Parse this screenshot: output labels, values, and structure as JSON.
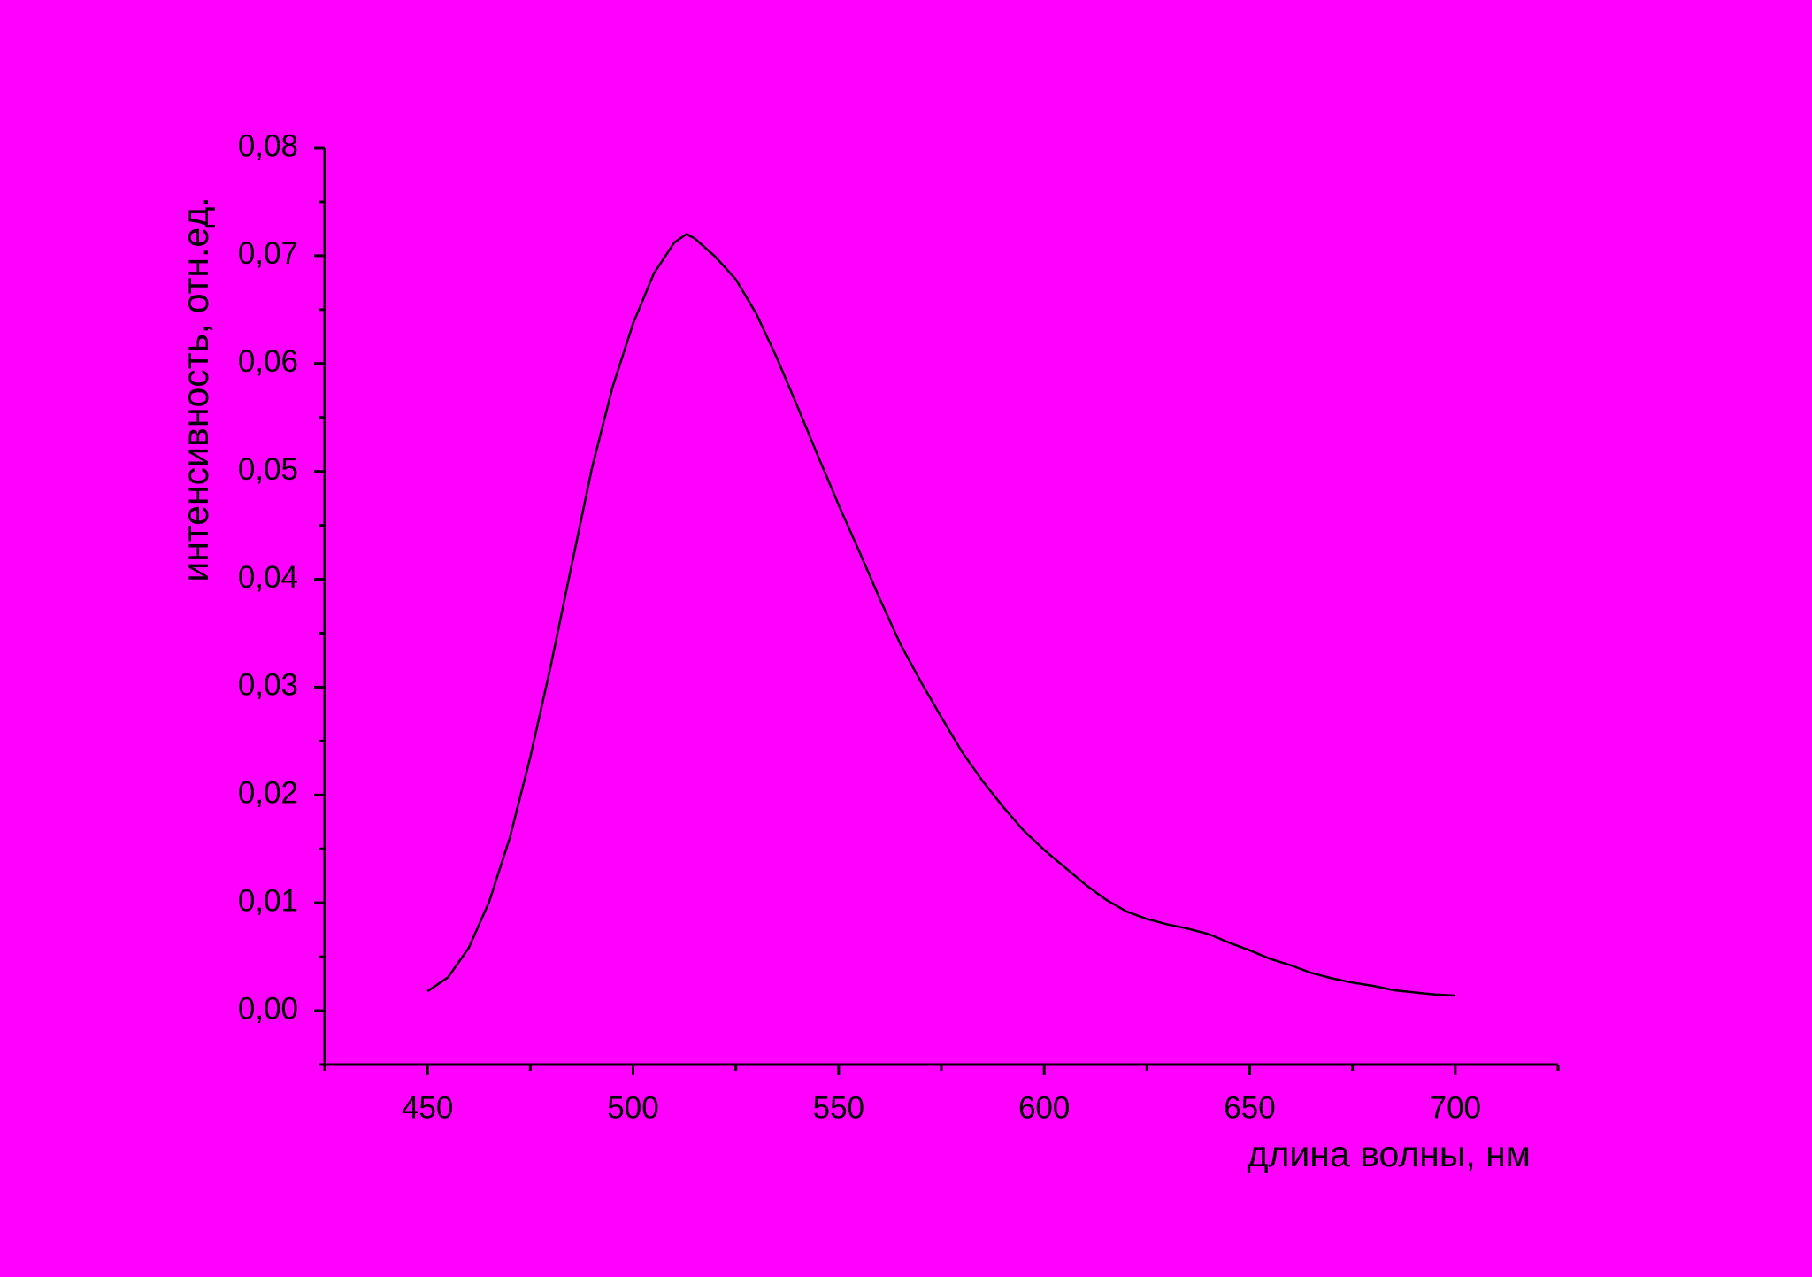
{
  "chart_data": {
    "type": "line",
    "xlabel": "длина волны, нм",
    "ylabel": "интенсивность, отн.ед.",
    "background": "#ff00ff",
    "color": "#000000",
    "x": [
      450,
      455,
      460,
      465,
      470,
      475,
      480,
      485,
      490,
      495,
      500,
      505,
      510,
      513,
      515,
      520,
      525,
      530,
      535,
      540,
      545,
      550,
      555,
      560,
      565,
      570,
      575,
      580,
      585,
      590,
      595,
      600,
      605,
      610,
      615,
      620,
      625,
      630,
      635,
      640,
      645,
      650,
      655,
      660,
      665,
      670,
      675,
      680,
      685,
      690,
      695,
      700
    ],
    "values": [
      0.0018,
      0.0031,
      0.0058,
      0.0101,
      0.016,
      0.0235,
      0.032,
      0.0412,
      0.0503,
      0.0578,
      0.0637,
      0.0683,
      0.0712,
      0.072,
      0.0716,
      0.0699,
      0.0678,
      0.0646,
      0.0605,
      0.056,
      0.0514,
      0.0469,
      0.0426,
      0.0382,
      0.034,
      0.0305,
      0.0272,
      0.024,
      0.0213,
      0.0189,
      0.0167,
      0.0149,
      0.0133,
      0.0117,
      0.0103,
      0.0092,
      0.0085,
      0.008,
      0.0076,
      0.0071,
      0.0063,
      0.0056,
      0.0048,
      0.0042,
      0.0035,
      0.003,
      0.0026,
      0.0023,
      0.0019,
      0.0017,
      0.0015,
      0.0014
    ],
    "xlim": [
      425,
      725
    ],
    "ylim": [
      -0.005,
      0.08
    ],
    "xticks": [
      450,
      500,
      550,
      600,
      650,
      700
    ],
    "xminorticks": [
      425,
      475,
      525,
      575,
      625,
      675,
      725
    ],
    "yticks": [
      {
        "value": 0,
        "label": "0,00"
      },
      {
        "value": 0.01,
        "label": "0,01"
      },
      {
        "value": 0.02,
        "label": "0,02"
      },
      {
        "value": 0.03,
        "label": "0,03"
      },
      {
        "value": 0.04,
        "label": "0,04"
      },
      {
        "value": 0.05,
        "label": "0,05"
      },
      {
        "value": 0.06,
        "label": "0,06"
      },
      {
        "value": 0.07,
        "label": "0,07"
      },
      {
        "value": 0.08,
        "label": "0,08"
      }
    ],
    "yminorticks": [
      -0.005,
      0.005,
      0.015,
      0.025,
      0.035,
      0.045,
      0.055,
      0.065,
      0.075
    ],
    "grid": false
  }
}
